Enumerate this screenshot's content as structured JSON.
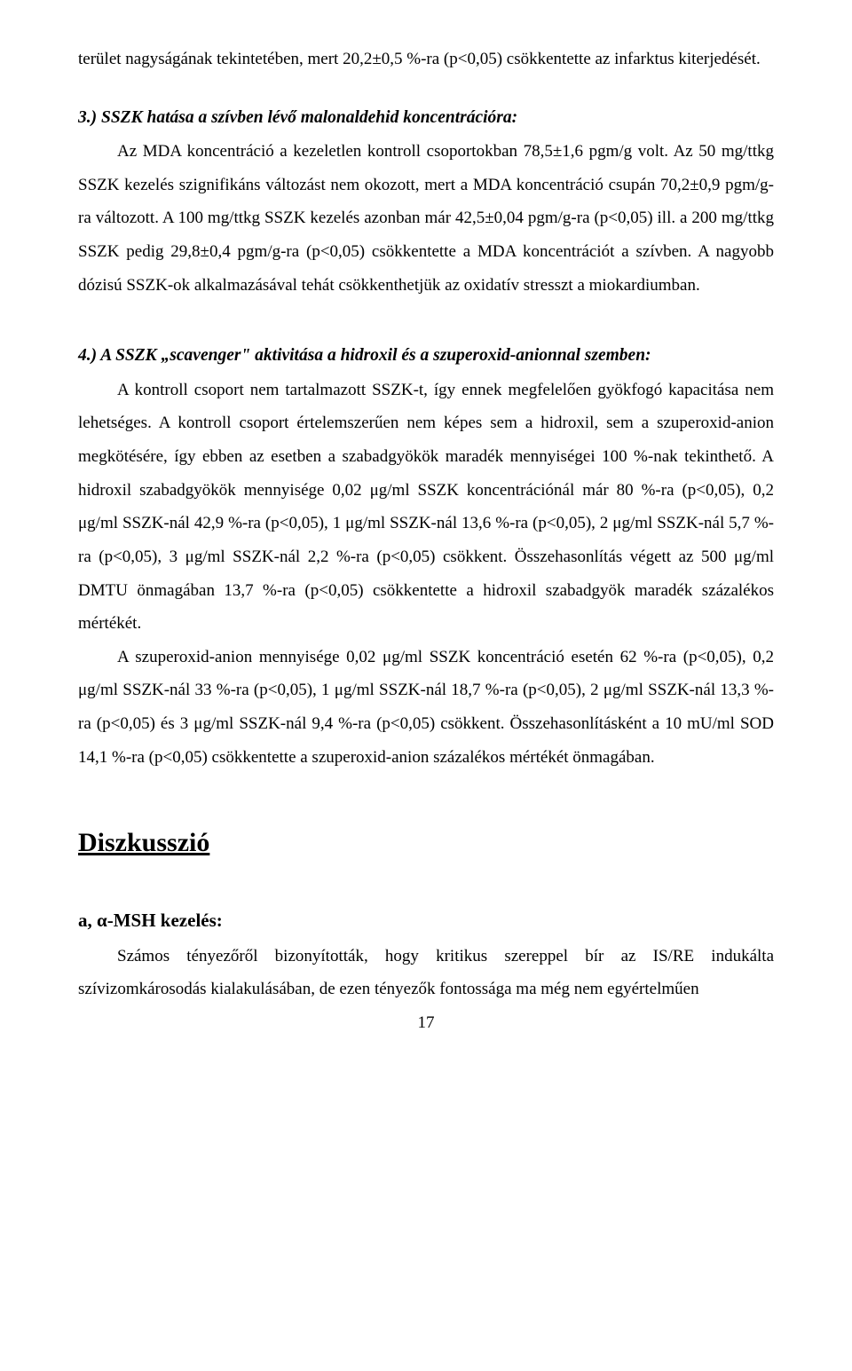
{
  "p0": "terület nagyságának tekintetében, mert 20,2±0,5 %-ra (p<0,05) csökkentette az infarktus kiterjedését.",
  "h3": "3.) SSZK hatása a szívben lévő malonaldehid koncentrációra:",
  "p3": "Az MDA koncentráció a kezeletlen kontroll csoportokban 78,5±1,6 pgm/g volt. Az 50 mg/ttkg SSZK kezelés szignifikáns változást nem okozott, mert a MDA koncentráció csupán 70,2±0,9 pgm/g-ra változott. A 100 mg/ttkg SSZK kezelés azonban már 42,5±0,04 pgm/g-ra (p<0,05) ill. a 200 mg/ttkg SSZK pedig 29,8±0,4 pgm/g-ra (p<0,05) csökkentette a MDA koncentrációt a szívben. A nagyobb dózisú SSZK-ok alkalmazásával tehát csökkenthetjük az oxidatív stresszt a miokardiumban.",
  "h4": "4.) A SSZK „scavenger\" aktivitása a hidroxil és a szuperoxid-anionnal szemben:",
  "p4a": "A kontroll csoport nem tartalmazott SSZK-t, így ennek megfelelően gyökfogó kapacitása nem lehetséges. A kontroll csoport értelemszerűen nem képes sem a hidroxil, sem a szuperoxid-anion megkötésére, így ebben az esetben a szabadgyökök maradék mennyiségei 100 %-nak tekinthető. A hidroxil szabadgyökök mennyisége 0,02 μg/ml SSZK koncentrációnál már 80 %-ra (p<0,05), 0,2 μg/ml SSZK-nál 42,9 %-ra (p<0,05), 1 μg/ml SSZK-nál 13,6 %-ra (p<0,05), 2 μg/ml SSZK-nál 5,7 %-ra (p<0,05), 3 μg/ml SSZK-nál 2,2 %-ra (p<0,05)  csökkent. Összehasonlítás végett az 500 μg/ml DMTU önmagában 13,7 %-ra (p<0,05) csökkentette a hidroxil szabadgyök maradék százalékos mértékét.",
  "p4b": "A szuperoxid-anion mennyisége 0,02 μg/ml SSZK koncentráció esetén 62 %-ra (p<0,05), 0,2 μg/ml SSZK-nál 33 %-ra (p<0,05), 1 μg/ml SSZK-nál 18,7 %-ra (p<0,05), 2 μg/ml SSZK-nál 13,3 %-ra (p<0,05) és 3 μg/ml SSZK-nál 9,4 %-ra (p<0,05) csökkent. Összehasonlításként a 10 mU/ml SOD 14,1 %-ra (p<0,05)  csökkentette a szuperoxid-anion százalékos mértékét önmagában.",
  "hDisc": "Diszkusszió",
  "hMSH": "a, α-MSH kezelés:",
  "pMSH": "Számos tényezőről bizonyították, hogy kritikus szereppel bír az IS/RE indukálta szívizomkárosodás kialakulásában, de ezen tényezők fontossága ma még nem egyértelműen",
  "page": "17"
}
